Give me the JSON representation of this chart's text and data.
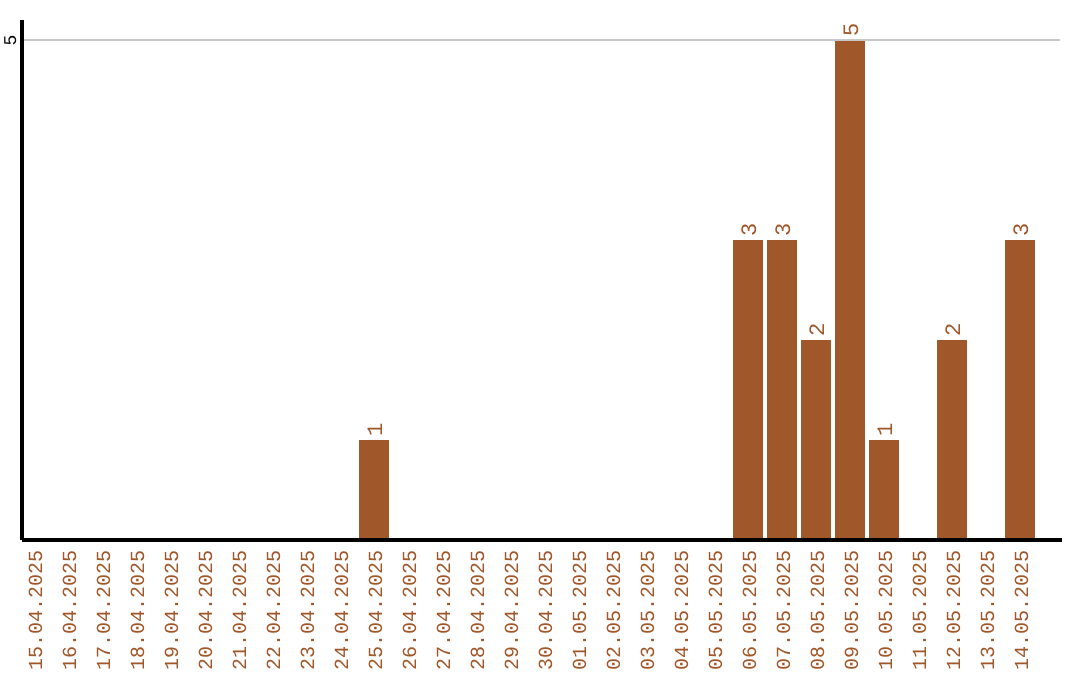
{
  "chart_data": {
    "type": "bar",
    "categories": [
      "15.04.2025",
      "16.04.2025",
      "17.04.2025",
      "18.04.2025",
      "19.04.2025",
      "20.04.2025",
      "21.04.2025",
      "22.04.2025",
      "23.04.2025",
      "24.04.2025",
      "25.04.2025",
      "26.04.2025",
      "27.04.2025",
      "28.04.2025",
      "29.04.2025",
      "30.04.2025",
      "01.05.2025",
      "02.05.2025",
      "03.05.2025",
      "04.05.2025",
      "05.05.2025",
      "06.05.2025",
      "07.05.2025",
      "08.05.2025",
      "09.05.2025",
      "10.05.2025",
      "11.05.2025",
      "12.05.2025",
      "13.05.2025",
      "14.05.2025"
    ],
    "values": [
      0,
      0,
      0,
      0,
      0,
      0,
      0,
      0,
      0,
      0,
      1,
      0,
      0,
      0,
      0,
      0,
      0,
      0,
      0,
      0,
      0,
      3,
      3,
      2,
      5,
      1,
      0,
      2,
      0,
      3
    ],
    "value_labels": [
      null,
      null,
      null,
      null,
      null,
      null,
      null,
      null,
      null,
      null,
      "1",
      null,
      null,
      null,
      null,
      null,
      null,
      null,
      null,
      null,
      null,
      "3",
      "3",
      "2",
      "5",
      "1",
      null,
      "2",
      null,
      "3"
    ],
    "color": "#a0572a",
    "ylim": [
      0,
      5.2
    ],
    "yticks": [
      5
    ],
    "grid": "y"
  }
}
